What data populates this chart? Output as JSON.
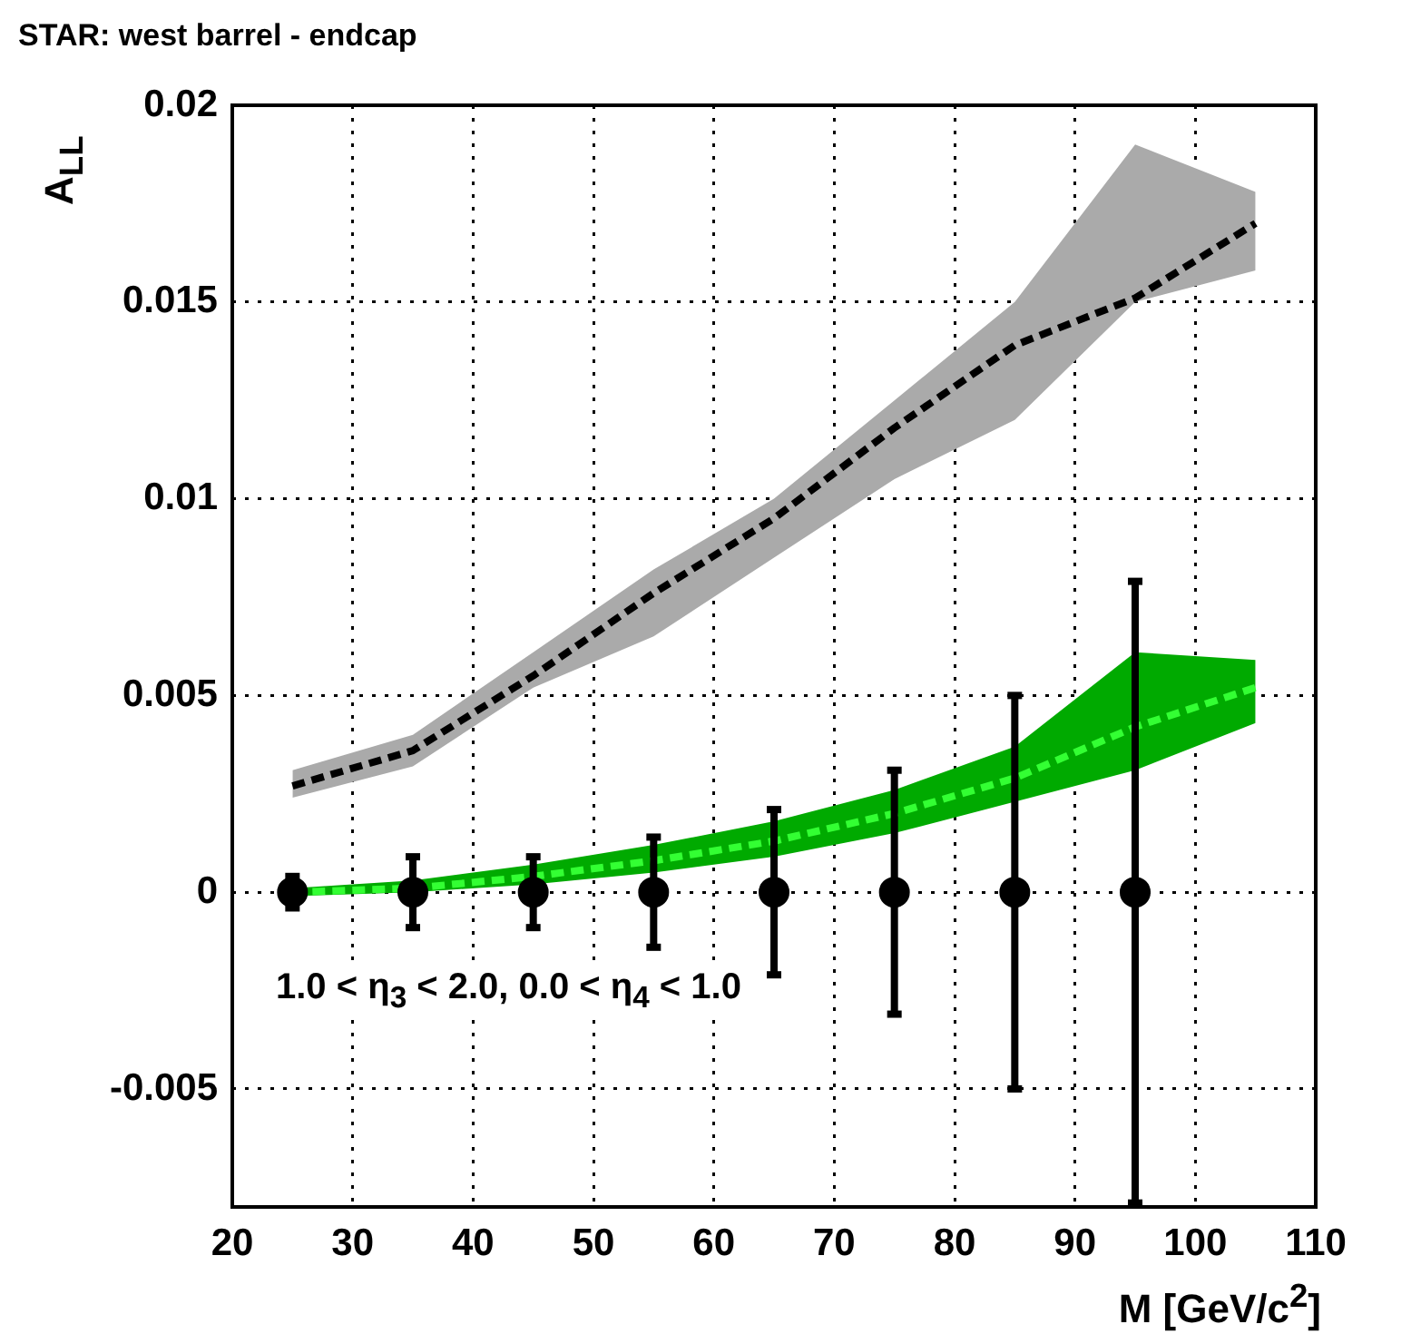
{
  "chart_data": {
    "type": "line",
    "title": "STAR: west barrel - endcap",
    "xlabel": "M [GeV/c$^{2}$]",
    "ylabel": "A$_{LL}$",
    "annotations": [
      "1.0 < η$_{3}$ < 2.0, 0.0 < η$_{4}$ < 1.0"
    ],
    "xlim": [
      20,
      110
    ],
    "xticks": [
      20,
      30,
      40,
      50,
      60,
      70,
      80,
      90,
      100,
      110
    ],
    "ylim": [
      -0.008,
      0.02
    ],
    "yticks": [
      -0.005,
      0,
      0.005,
      0.01,
      0.015,
      0.02
    ],
    "grid": true,
    "legend": false,
    "series": [
      {
        "line_style": "dashed",
        "color": "#000000",
        "x": [
          25,
          35,
          45,
          55,
          65,
          75,
          85,
          95,
          105
        ],
        "values": [
          0.0027,
          0.0036,
          0.0055,
          0.0076,
          0.0095,
          0.0118,
          0.0139,
          0.0151,
          0.017
        ],
        "lower": [
          0.0024,
          0.0032,
          0.0052,
          0.0065,
          0.0085,
          0.0105,
          0.012,
          0.015,
          0.0158
        ],
        "upper": [
          0.0031,
          0.004,
          0.0061,
          0.0082,
          0.01,
          0.0125,
          0.015,
          0.019,
          0.0178
        ]
      },
      {
        "line_style": "dashed",
        "color": "#33ff33",
        "x": [
          25,
          35,
          45,
          55,
          65,
          75,
          85,
          95,
          105
        ],
        "values": [
          0,
          0.0001,
          0.0004,
          0.0008,
          0.0013,
          0.002,
          0.0029,
          0.0042,
          0.0052
        ],
        "lower": [
          -0.0001,
          0,
          0.0002,
          0.0005,
          0.0009,
          0.0015,
          0.0023,
          0.0031,
          0.0043
        ],
        "upper": [
          0.0001,
          0.0003,
          0.0007,
          0.0012,
          0.0018,
          0.0026,
          0.0037,
          0.0061,
          0.0059
        ]
      },
      {
        "type": "scatter",
        "marker": "circle",
        "color": "#000000",
        "x": [
          25,
          35,
          45,
          55,
          65,
          75,
          85,
          95
        ],
        "values": [
          0,
          0,
          0,
          0,
          0,
          0,
          0,
          0
        ],
        "errors": [
          0.0004,
          0.0009,
          0.0009,
          0.0014,
          0.0021,
          0.0031,
          0.005,
          0.0079
        ]
      }
    ]
  }
}
